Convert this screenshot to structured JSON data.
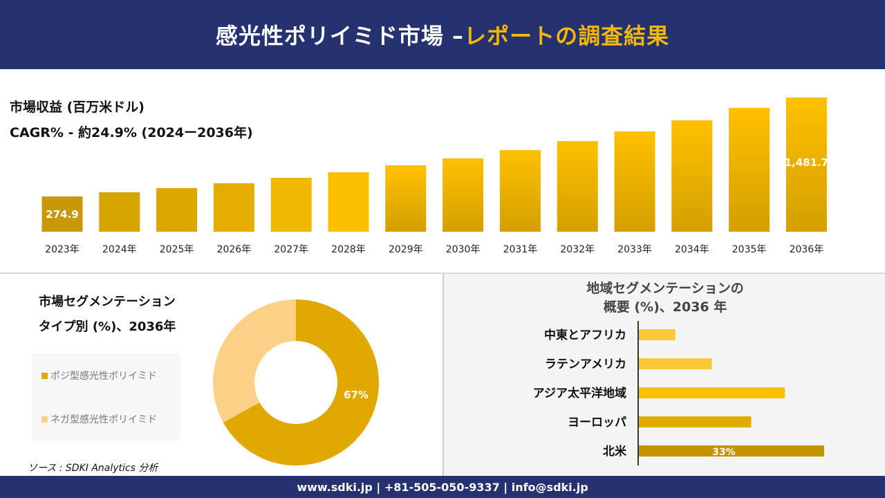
{
  "header": {
    "title_white": "感光性ポリイミド市場 –",
    "title_gold": "レポートの調査結果"
  },
  "revenue": {
    "title": "市場収益 (百万米ドル)",
    "cagr": "CAGR% - 約24.9% (2024ー2036年)"
  },
  "chart_data": [
    {
      "type": "bar",
      "categories": [
        "2023年",
        "2024年",
        "2025年",
        "2026年",
        "2027年",
        "2028年",
        "2029年",
        "2030年",
        "2031年",
        "2032年",
        "2033年",
        "2034年",
        "2035年",
        "2036年"
      ],
      "values": [
        274.9,
        326,
        377,
        436,
        503,
        571,
        655,
        740,
        841,
        951,
        1069,
        1204,
        1356,
        1481.7
      ],
      "data_labels": {
        "0": "274.9",
        "13": "1,481.7"
      },
      "title": "市場収益 (百万米ドル)"
    },
    {
      "type": "pie",
      "title": "市場セグメンテーション タイプ別 (%)、2036年",
      "categories": [
        "ポジ型感光性ポリイミド",
        "ネガ型感光性ポリイミド"
      ],
      "values": [
        67,
        33
      ],
      "colors": [
        "#e0a800",
        "#fdd088"
      ],
      "data_labels": [
        "67%",
        ""
      ]
    },
    {
      "type": "bar",
      "orientation": "horizontal",
      "title": "地域セグメンテーションの 概要 (%)、2036 年",
      "categories": [
        "中東とアフリカ",
        "ラテンアメリカ",
        "アジア太平洋地域",
        "ヨーロッパ",
        "北米"
      ],
      "values": [
        6.5,
        13,
        26,
        20,
        33
      ],
      "colors": [
        "#fcc83a",
        "#fcc83a",
        "#fcc000",
        "#e2ab00",
        "#c49400"
      ],
      "data_labels": [
        "",
        "",
        "",
        "",
        "33%"
      ]
    }
  ],
  "segment": {
    "title1": "市場セグメンテーション",
    "title2": "タイプ別 (%)、2036年"
  },
  "region": {
    "title1": "地域セグメンテーションの",
    "title2": "概要 (%)、2036 年"
  },
  "source": "ソース : SDKI Analytics 分析",
  "footer": "www.sdki.jp | +81-505-050-9337 | info@sdki.jp"
}
